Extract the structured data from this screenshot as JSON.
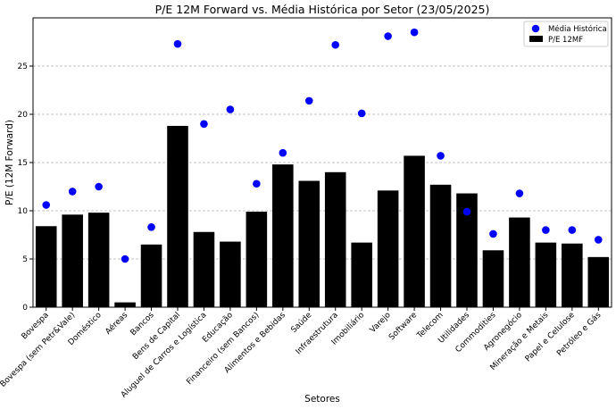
{
  "chart_data": {
    "type": "bar",
    "title": "P/E 12M Forward vs. Média Histórica por Setor (23/05/2025)",
    "xlabel": "Setores",
    "ylabel": "P/E (12M Forward)",
    "ylim": [
      0,
      30
    ],
    "yticks": [
      0,
      5,
      10,
      15,
      20,
      25
    ],
    "grid": "horizontal dashed",
    "legend_position": "top-right",
    "categories": [
      "Bovespa",
      "Bovespa (sem Petr&Vale)",
      "Doméstico",
      "Aéreas",
      "Bancos",
      "Bens de Capital",
      "Aluguel de Carros e Logística",
      "Educação",
      "Financeiro (sem Bancos)",
      "Alimentos e Bebidas",
      "Saúde",
      "Infraestrutura",
      "Imobiliário",
      "Varejo",
      "Software",
      "Telecom",
      "Utilidades",
      "Commodities",
      "Agronegócio",
      "Mineração e Metais",
      "Papel e Celulose",
      "Petróleo e Gás"
    ],
    "series": [
      {
        "name": "P/E 12MF",
        "kind": "bar",
        "color": "#000000",
        "values": [
          8.4,
          9.6,
          9.8,
          0.5,
          6.5,
          18.8,
          7.8,
          6.8,
          9.9,
          14.8,
          13.1,
          14.0,
          6.7,
          12.1,
          15.7,
          12.7,
          11.8,
          5.9,
          9.3,
          6.7,
          6.6,
          5.2
        ]
      },
      {
        "name": "Média Histórica",
        "kind": "scatter",
        "color": "#0000ff",
        "values": [
          10.6,
          12.0,
          12.5,
          5.0,
          8.3,
          27.3,
          19.0,
          20.5,
          12.8,
          16.0,
          21.4,
          27.2,
          20.1,
          28.1,
          28.5,
          15.7,
          9.9,
          7.6,
          11.8,
          8.0,
          8.0,
          7.0
        ]
      }
    ]
  }
}
